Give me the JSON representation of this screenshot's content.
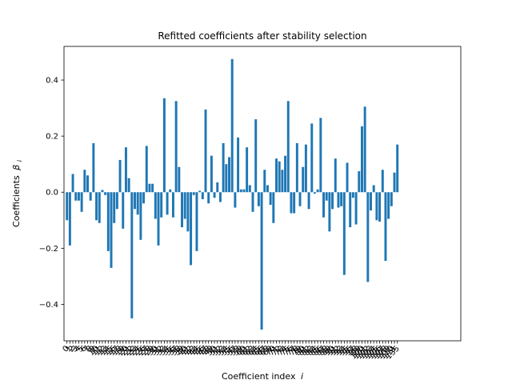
{
  "chart_data": {
    "type": "bar",
    "title": "Refitted coefficients after stability selection",
    "xlabel": "Coefficient index",
    "xlabel_var": "i",
    "ylabel": "Coefficients",
    "ylabel_var": "β",
    "ylabel_sub": "i",
    "ylim": [
      -0.53,
      0.52
    ],
    "xlim": [
      -1.0,
      133.5
    ],
    "yticks": [
      -0.4,
      -0.2,
      0.0,
      0.2,
      0.4
    ],
    "ytick_labels": [
      "−0.4",
      "−0.2",
      "0.0",
      "0.2",
      "0.4"
    ],
    "x_tick_first_labels": [
      "0",
      "1",
      "2",
      "3",
      "4"
    ],
    "x_tick_last_label": "135",
    "bar_color": "#1f77b4",
    "values": [
      -0.1,
      -0.19,
      0.065,
      -0.03,
      -0.03,
      -0.07,
      0.08,
      0.06,
      -0.03,
      0.175,
      -0.1,
      -0.11,
      0.008,
      -0.01,
      -0.21,
      -0.27,
      -0.11,
      -0.06,
      0.115,
      -0.13,
      0.16,
      0.05,
      -0.45,
      -0.06,
      -0.08,
      -0.17,
      -0.04,
      0.165,
      0.03,
      0.03,
      -0.095,
      -0.19,
      -0.09,
      0.335,
      -0.08,
      0.01,
      -0.09,
      0.325,
      0.09,
      -0.125,
      -0.095,
      -0.14,
      -0.26,
      -0.01,
      -0.21,
      0.005,
      -0.025,
      0.295,
      -0.04,
      0.13,
      -0.02,
      0.035,
      -0.035,
      0.175,
      0.1,
      0.125,
      0.475,
      -0.055,
      0.195,
      0.01,
      0.01,
      0.16,
      0.025,
      -0.07,
      0.26,
      -0.05,
      -0.49,
      0.08,
      0.025,
      -0.045,
      -0.11,
      0.12,
      0.11,
      0.08,
      0.13,
      0.325,
      -0.075,
      -0.075,
      0.175,
      -0.05,
      0.09,
      0.17,
      -0.06,
      0.245,
      -0.005,
      0.01,
      0.265,
      -0.09,
      -0.03,
      -0.14,
      -0.06,
      0.12,
      -0.055,
      -0.05,
      -0.295,
      0.105,
      -0.125,
      -0.02,
      -0.115,
      0.075,
      0.235,
      0.305,
      -0.32,
      -0.065,
      0.025,
      -0.1,
      -0.105,
      0.08,
      -0.245,
      -0.095,
      -0.05,
      0.07,
      0.17
    ]
  }
}
